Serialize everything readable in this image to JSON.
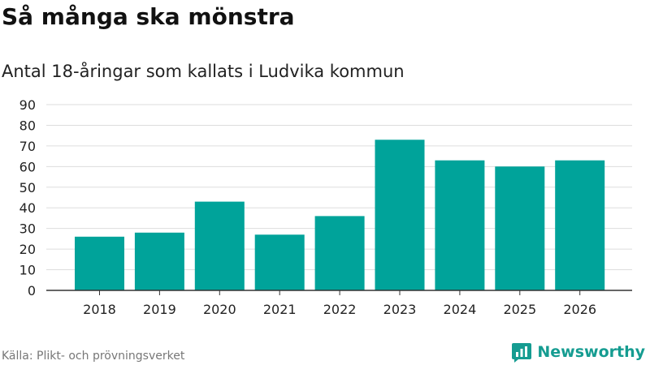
{
  "title": "Så många ska mönstra",
  "subtitle": "Antal 18-åringar som kallats i Ludvika kommun",
  "source": "Källa: Plikt- och prövningsverket",
  "brand": "Newsworthy",
  "colors": {
    "bar": "#00a39a",
    "grid": "#dddddd",
    "axis": "#333333",
    "brand": "#159c91"
  },
  "chart_data": {
    "type": "bar",
    "categories": [
      "2018",
      "2019",
      "2020",
      "2021",
      "2022",
      "2023",
      "2024",
      "2025",
      "2026"
    ],
    "values": [
      26,
      28,
      43,
      27,
      36,
      73,
      63,
      60,
      63
    ],
    "title": "Så många ska mönstra",
    "subtitle": "Antal 18-åringar som kallats i Ludvika kommun",
    "xlabel": "",
    "ylabel": "",
    "ylim": [
      0,
      90
    ],
    "yticks": [
      0,
      10,
      20,
      30,
      40,
      50,
      60,
      70,
      80,
      90
    ],
    "grid": true,
    "legend": "none"
  }
}
